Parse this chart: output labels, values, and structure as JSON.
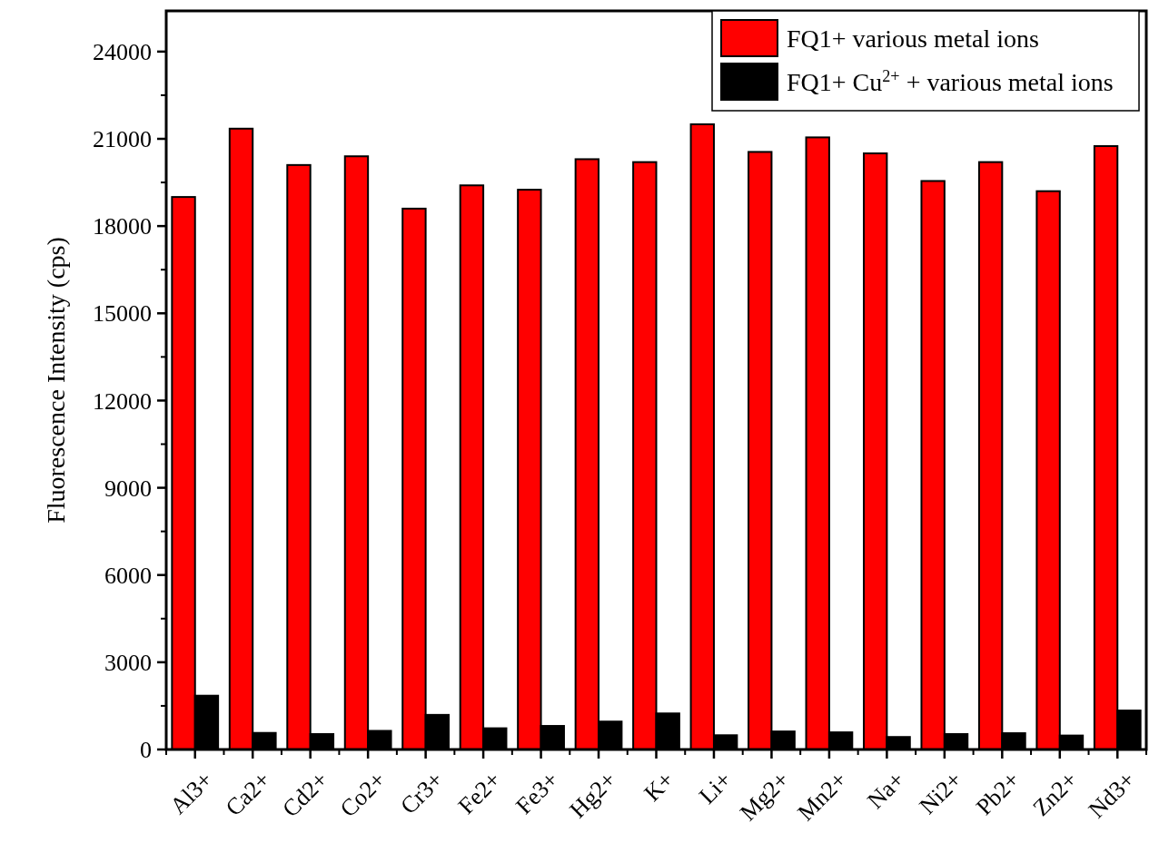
{
  "chart_data": {
    "type": "bar",
    "ylabel": "Fluorescence Intensity (cps)",
    "categories": [
      "Al3+",
      "Ca2+",
      "Cd2+",
      "Co2+",
      "Cr3+",
      "Fe2+",
      "Fe3+",
      "Hg2+",
      "K+",
      "Li+",
      "Mg2+",
      "Mn2+",
      "Na+",
      "Ni2+",
      "Pb2+",
      "Zn2+",
      "Nd3+"
    ],
    "series": [
      {
        "name": "FQ1+ various metal ions",
        "color": "#ff0000",
        "values": [
          19000,
          21350,
          20100,
          20400,
          18600,
          19400,
          19250,
          20300,
          20200,
          21500,
          20550,
          21050,
          20500,
          19550,
          20200,
          19200,
          20750
        ]
      },
      {
        "name": "FQ1+ Cu$^{2+}$ + various metal ions",
        "color": "#000000",
        "values": [
          1850,
          570,
          530,
          640,
          1190,
          730,
          810,
          960,
          1240,
          490,
          620,
          590,
          430,
          530,
          560,
          480,
          1340
        ]
      }
    ],
    "ylim": [
      0,
      25400
    ],
    "yticks": [
      0,
      3000,
      6000,
      9000,
      12000,
      15000,
      18000,
      21000,
      24000
    ],
    "grid": false,
    "legend": "top right"
  }
}
